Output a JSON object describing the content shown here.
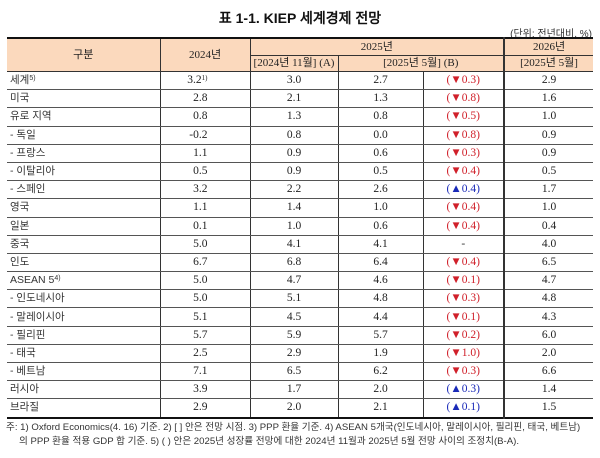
{
  "title": "표 1-1. KIEP 세계경제 전망",
  "unit": "(단위: 전년대비, %)",
  "header": {
    "col_category": "구분",
    "col_2024": "2024년",
    "col_2025": "2025년",
    "col_2026": "2026년",
    "sub_2025_nov": "[2024년 11월] (A)",
    "sub_2025_may": "[2025년 5월] (B)",
    "sub_2026_may": "[2025년 5월]"
  },
  "rows": [
    {
      "name": "세계",
      "sup": "5)",
      "y2024": "3.2",
      "y2024_sup": "1)",
      "a": "3.0",
      "b": "2.7",
      "chg": "(▼0.3)",
      "dir": "down",
      "y2026": "2.9"
    },
    {
      "name": "미국",
      "sup": "",
      "y2024": "2.8",
      "y2024_sup": "",
      "a": "2.1",
      "b": "1.3",
      "chg": "(▼0.8)",
      "dir": "down",
      "y2026": "1.6"
    },
    {
      "name": "유로 지역",
      "sup": "",
      "y2024": "0.8",
      "y2024_sup": "",
      "a": "1.3",
      "b": "0.8",
      "chg": "(▼0.5)",
      "dir": "down",
      "y2026": "1.0"
    },
    {
      "name": " - 독일",
      "sup": "",
      "y2024": "-0.2",
      "y2024_sup": "",
      "a": "0.8",
      "b": "0.0",
      "chg": "(▼0.8)",
      "dir": "down",
      "y2026": "0.9"
    },
    {
      "name": " - 프랑스",
      "sup": "",
      "y2024": "1.1",
      "y2024_sup": "",
      "a": "0.9",
      "b": "0.6",
      "chg": "(▼0.3)",
      "dir": "down",
      "y2026": "0.9"
    },
    {
      "name": " - 이탈리아",
      "sup": "",
      "y2024": "0.5",
      "y2024_sup": "",
      "a": "0.9",
      "b": "0.5",
      "chg": "(▼0.4)",
      "dir": "down",
      "y2026": "0.5"
    },
    {
      "name": " - 스페인",
      "sup": "",
      "y2024": "3.2",
      "y2024_sup": "",
      "a": "2.2",
      "b": "2.6",
      "chg": "(▲0.4)",
      "dir": "up",
      "y2026": "1.7"
    },
    {
      "name": "영국",
      "sup": "",
      "y2024": "1.1",
      "y2024_sup": "",
      "a": "1.4",
      "b": "1.0",
      "chg": "(▼0.4)",
      "dir": "down",
      "y2026": "1.0"
    },
    {
      "name": "일본",
      "sup": "",
      "y2024": "0.1",
      "y2024_sup": "",
      "a": "1.0",
      "b": "0.6",
      "chg": "(▼0.4)",
      "dir": "down",
      "y2026": "0.4"
    },
    {
      "name": "중국",
      "sup": "",
      "y2024": "5.0",
      "y2024_sup": "",
      "a": "4.1",
      "b": "4.1",
      "chg": "-",
      "dir": "none",
      "y2026": "4.0"
    },
    {
      "name": "인도",
      "sup": "",
      "y2024": "6.7",
      "y2024_sup": "",
      "a": "6.8",
      "b": "6.4",
      "chg": "(▼0.4)",
      "dir": "down",
      "y2026": "6.5"
    },
    {
      "name": "ASEAN 5",
      "sup": "4)",
      "y2024": "5.0",
      "y2024_sup": "",
      "a": "4.7",
      "b": "4.6",
      "chg": "(▼0.1)",
      "dir": "down",
      "y2026": "4.7"
    },
    {
      "name": " - 인도네시아",
      "sup": "",
      "y2024": "5.0",
      "y2024_sup": "",
      "a": "5.1",
      "b": "4.8",
      "chg": "(▼0.3)",
      "dir": "down",
      "y2026": "4.8"
    },
    {
      "name": " - 말레이시아",
      "sup": "",
      "y2024": "5.1",
      "y2024_sup": "",
      "a": "4.5",
      "b": "4.4",
      "chg": "(▼0.1)",
      "dir": "down",
      "y2026": "4.3"
    },
    {
      "name": " - 필리핀",
      "sup": "",
      "y2024": "5.7",
      "y2024_sup": "",
      "a": "5.9",
      "b": "5.7",
      "chg": "(▼0.2)",
      "dir": "down",
      "y2026": "6.0"
    },
    {
      "name": " - 태국",
      "sup": "",
      "y2024": "2.5",
      "y2024_sup": "",
      "a": "2.9",
      "b": "1.9",
      "chg": "(▼1.0)",
      "dir": "down",
      "y2026": "2.0"
    },
    {
      "name": " - 베트남",
      "sup": "",
      "y2024": "7.1",
      "y2024_sup": "",
      "a": "6.5",
      "b": "6.2",
      "chg": "(▼0.3)",
      "dir": "down",
      "y2026": "6.6"
    },
    {
      "name": "러시아",
      "sup": "",
      "y2024": "3.9",
      "y2024_sup": "",
      "a": "1.7",
      "b": "2.0",
      "chg": "(▲0.3)",
      "dir": "up",
      "y2026": "1.4"
    },
    {
      "name": "브라질",
      "sup": "",
      "y2024": "2.9",
      "y2024_sup": "",
      "a": "2.0",
      "b": "2.1",
      "chg": "(▲0.1)",
      "dir": "up",
      "y2026": "1.5"
    }
  ],
  "notes": {
    "line1": "주: 1) Oxford Economics(4. 16) 기준. 2) [ ] 안은 전망 시점. 3) PPP 환율 기준. 4) ASEAN 5개국(인도네시아, 말레이시아, 필리핀, 태국, 베트남)",
    "line2": "의 PPP 환율 적용 GDP 합 기준. 5) ( ) 안은 2025년 성장률 전망에 대한 2024년 11월과 2025년 5월 전망 사이의 조정치(B-A)."
  },
  "colors": {
    "header_bg": "#fbd9bd",
    "down": "#d0202a",
    "up": "#1a2ab8"
  }
}
